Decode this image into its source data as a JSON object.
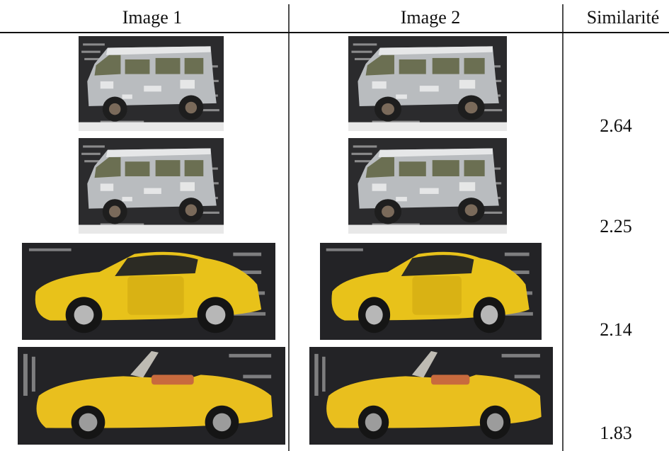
{
  "table": {
    "header": [
      "Image 1",
      "Image 2",
      "Similarité"
    ],
    "rows": [
      {
        "similarity": "2.64"
      },
      {
        "similarity": "2.25"
      },
      {
        "similarity": "2.14"
      },
      {
        "similarity": "1.83"
      }
    ]
  }
}
